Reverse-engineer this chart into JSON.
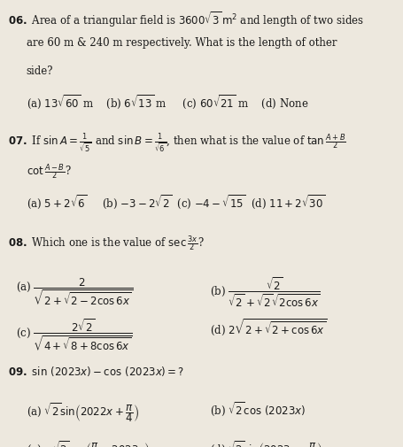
{
  "background_color": "#ede8de",
  "text_color": "#1a1a1a",
  "fig_width": 4.55,
  "fig_height": 5.05,
  "dpi": 100
}
